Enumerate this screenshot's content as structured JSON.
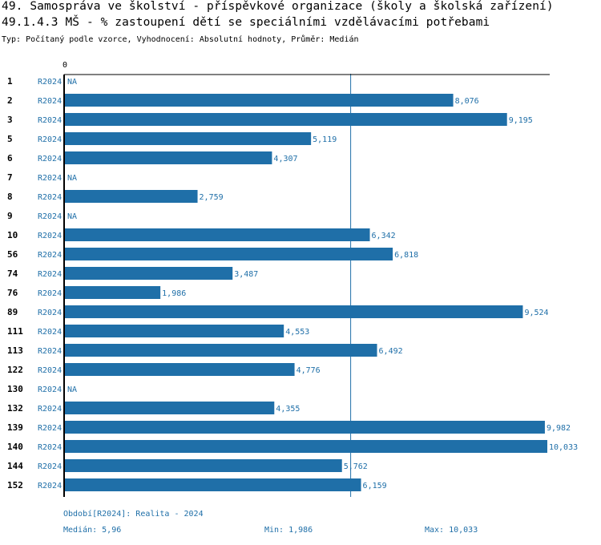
{
  "header": {
    "title_line1": "49. Samospráva ve školství - příspěvkové organizace (školy a školská zařízení)",
    "title_line2": "49.1.4.3 MŠ - % zastoupení dětí se speciálními vzdělávacími potřebami",
    "subtitle": "Typ: Počítaný podle vzorce, Vyhodnocení: Absolutní hodnoty, Průměr: Medián"
  },
  "chart_data": {
    "type": "bar",
    "orientation": "horizontal",
    "axis_zero_label": "0",
    "xlim": [
      0,
      10.033
    ],
    "median_line": 5.96,
    "period_label": "R2024",
    "na_label": "NA",
    "categories": [
      "1",
      "2",
      "3",
      "5",
      "6",
      "7",
      "8",
      "9",
      "10",
      "56",
      "74",
      "76",
      "89",
      "111",
      "113",
      "122",
      "130",
      "132",
      "139",
      "140",
      "144",
      "152"
    ],
    "values": [
      null,
      8.076,
      9.195,
      5.119,
      4.307,
      null,
      2.759,
      null,
      6.342,
      6.818,
      3.487,
      1.986,
      9.524,
      4.553,
      6.492,
      4.776,
      null,
      4.355,
      9.982,
      10.033,
      5.762,
      6.159
    ],
    "value_labels": [
      "NA",
      "8,076",
      "9,195",
      "5,119",
      "4,307",
      "NA",
      "2,759",
      "NA",
      "6,342",
      "6,818",
      "3,487",
      "1,986",
      "9,524",
      "4,553",
      "6,492",
      "4,776",
      "NA",
      "4,355",
      "9,982",
      "10,033",
      "5,762",
      "6,159"
    ]
  },
  "footer": {
    "period": "Období[R2024]: Realita - 2024",
    "median": "Medián: 5,96",
    "min": "Min: 1,986",
    "max": "Max: 10,033"
  },
  "colors": {
    "bar": "#1f6fa8",
    "label_blue": "#1f6fa8",
    "axis": "#000000",
    "median_line": "#1f6fa8"
  }
}
